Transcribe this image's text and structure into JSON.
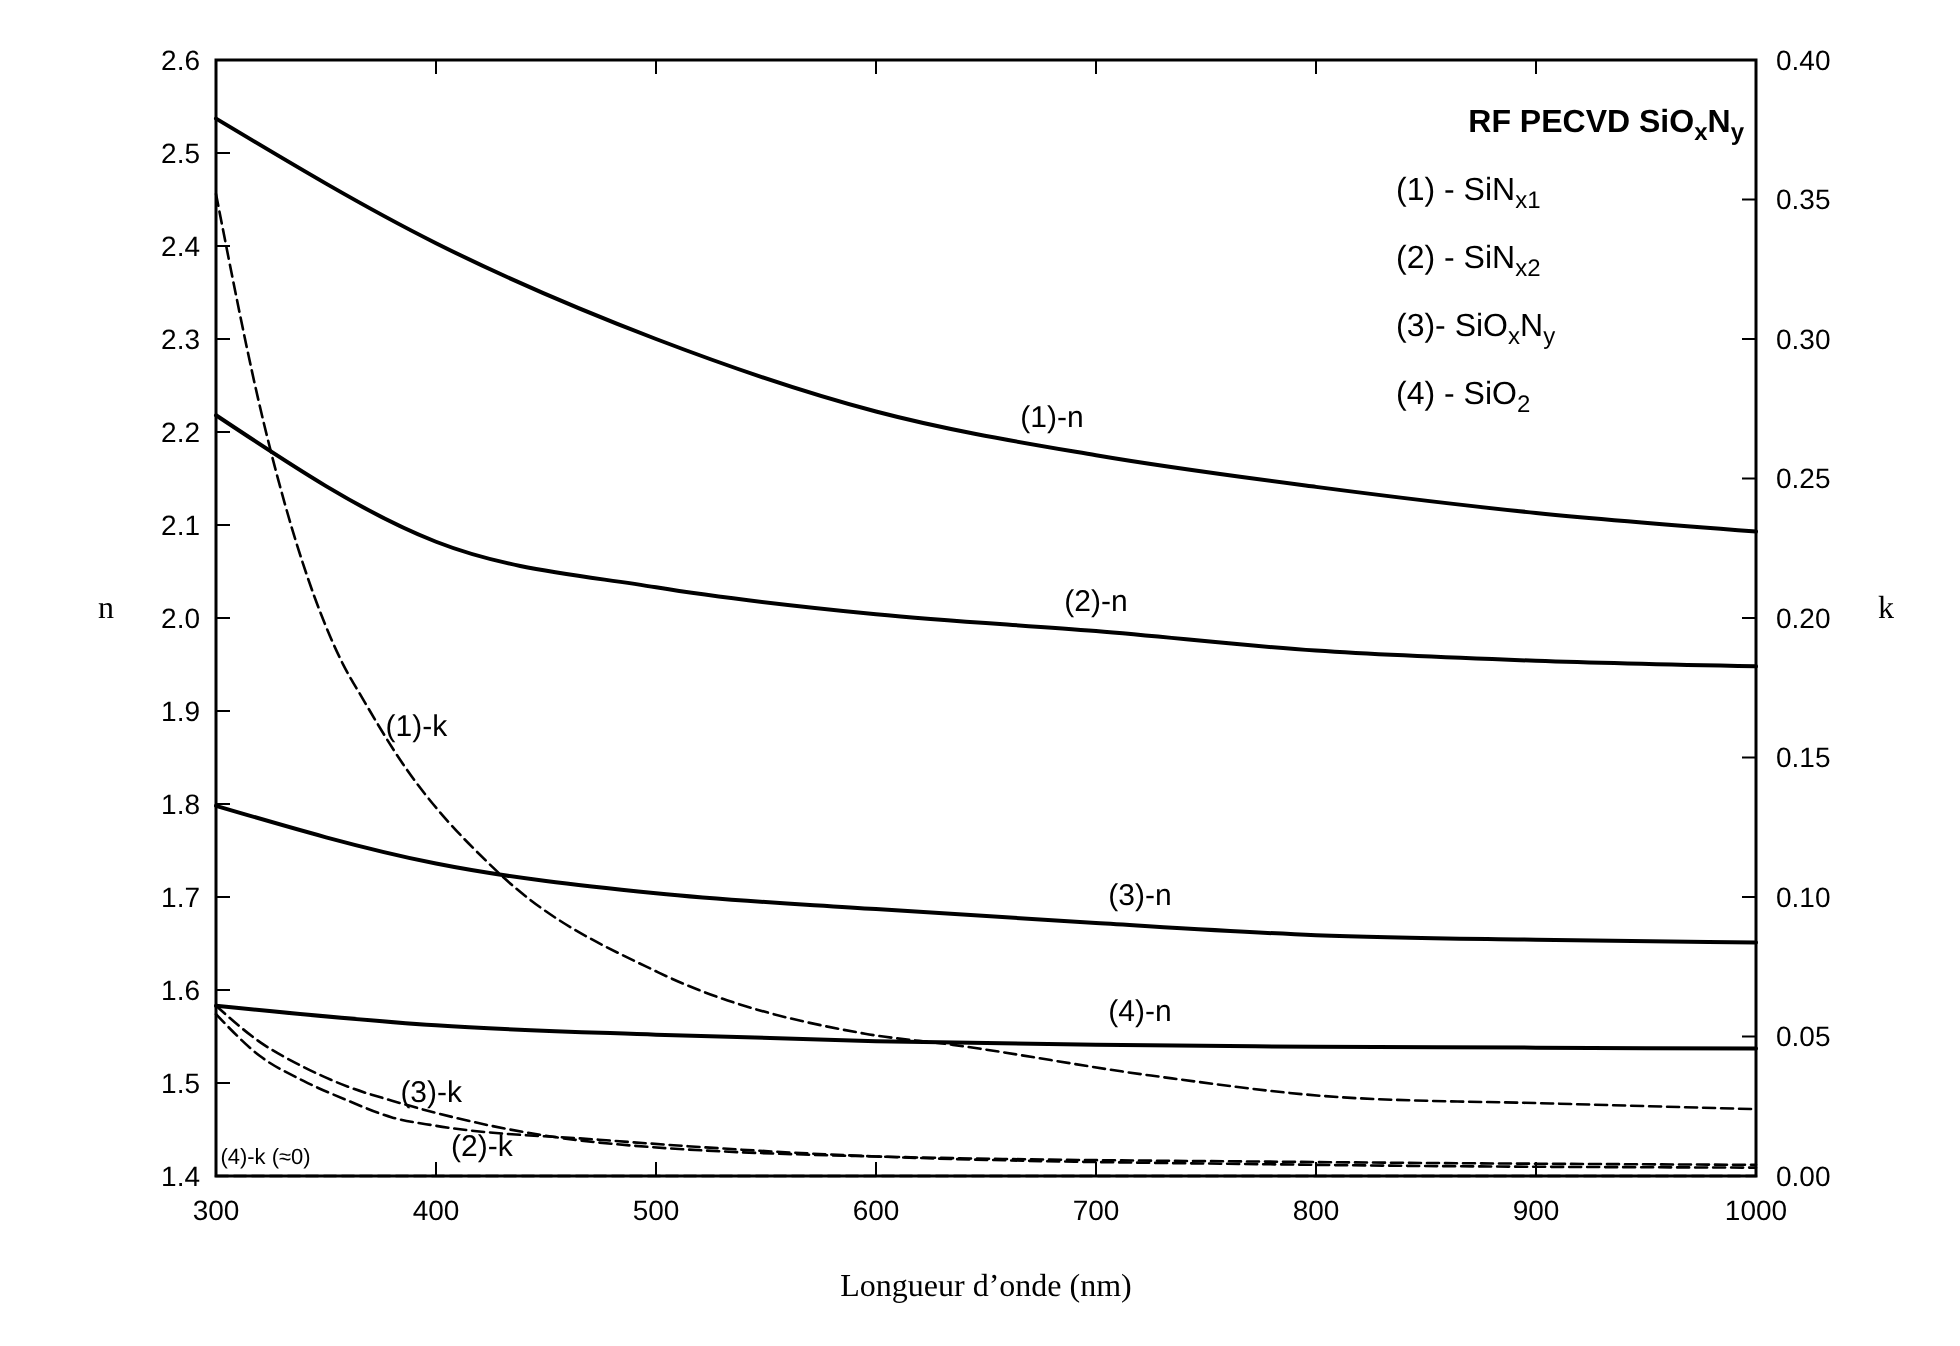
{
  "chart_data": {
    "type": "line",
    "xlabel": "Longueur d’onde (nm)",
    "ylabel": "n",
    "y2label": "k",
    "xlim": [
      300,
      1000
    ],
    "xticks": [
      300,
      400,
      500,
      600,
      700,
      800,
      900,
      1000
    ],
    "ylim": [
      1.4,
      2.6
    ],
    "yticks": [
      1.4,
      1.5,
      1.6,
      1.7,
      1.8,
      1.9,
      {
        "value": 2,
        "label": "2.0"
      },
      2.1,
      2.2,
      2.3,
      2.4,
      2.5,
      2.6
    ],
    "y2lim": [
      0,
      0.4
    ],
    "y2ticks": [
      {
        "value": 0,
        "label": "0.00"
      },
      {
        "value": 0.05,
        "label": "0.05"
      },
      {
        "value": 0.1,
        "label": "0.10"
      },
      {
        "value": 0.15,
        "label": "0.15"
      },
      {
        "value": 0.2,
        "label": "0.20"
      },
      {
        "value": 0.25,
        "label": "0.25"
      },
      {
        "value": 0.3,
        "label": "0.30"
      },
      {
        "value": 0.35,
        "label": "0.35"
      },
      {
        "value": 0.4,
        "label": "0.40"
      }
    ],
    "grid": false,
    "marker": "none",
    "x": [
      300,
      400,
      500,
      600,
      700,
      800,
      900,
      1000
    ],
    "series": [
      {
        "name": "(1)-n",
        "color": "#000000",
        "line_style": "solid",
        "values": [
          2.537,
          2.403,
          2.3,
          2.222,
          2.175,
          2.141,
          2.113,
          2.093
        ]
      },
      {
        "name": "(2)-n",
        "color": "#000000",
        "line_style": "solid",
        "values": [
          2.218,
          2.082,
          2.033,
          2.004,
          1.986,
          1.965,
          1.954,
          1.948
        ]
      },
      {
        "name": "(3)-n",
        "color": "#000000",
        "line_style": "solid",
        "values": [
          1.798,
          1.736,
          1.704,
          1.687,
          1.672,
          1.659,
          1.654,
          1.651
        ]
      },
      {
        "name": "(4)-n",
        "color": "#000000",
        "line_style": "solid",
        "values": [
          1.583,
          1.562,
          1.552,
          1.545,
          1.541,
          1.539,
          1.538,
          1.537
        ]
      },
      {
        "name": "(1)-k",
        "color": "#000000",
        "line_style": "dashed",
        "axis": "y2",
        "x": [
          300,
          322,
          358,
          366,
          383,
          428,
          501,
          595,
          635,
          725,
          816,
          907,
          998
        ],
        "values": [
          0.352,
          0.269,
          0.183,
          0.172,
          0.15,
          0.109,
          0.073,
          0.051,
          0.047,
          0.036,
          0.028,
          0.026,
          0.024
        ]
      },
      {
        "name": "(2)-k",
        "color": "#000000",
        "line_style": "dashed",
        "axis": "y2",
        "x": [
          300,
          320,
          340,
          360,
          380,
          400,
          474,
          600,
          800,
          1000
        ],
        "values": [
          0.058,
          0.043,
          0.034,
          0.027,
          0.021,
          0.018,
          0.013,
          0.007,
          0.004,
          0.003
        ]
      },
      {
        "name": "(3)-k",
        "color": "#000000",
        "line_style": "dashed",
        "axis": "y2",
        "x": [
          300,
          320,
          340,
          360,
          380,
          474,
          600,
          800,
          1000
        ],
        "values": [
          0.061,
          0.048,
          0.039,
          0.032,
          0.027,
          0.012,
          0.007,
          0.005,
          0.004
        ]
      },
      {
        "name": "(4)-k (≈0)",
        "color": "#000000",
        "line_style": "dashed",
        "axis": "y2",
        "x": [
          300,
          1000
        ],
        "values": [
          0,
          0
        ]
      }
    ],
    "annotations": [
      "RF PECVD SiO$_{x}$N$_{y}$",
      "(1) - SiN$_{x1}$",
      "(2) - SiN$_{x2}$",
      "(3)- SiO$_{x}$N$_{y}$",
      "(4) - SiO$_{2}$"
    ]
  }
}
